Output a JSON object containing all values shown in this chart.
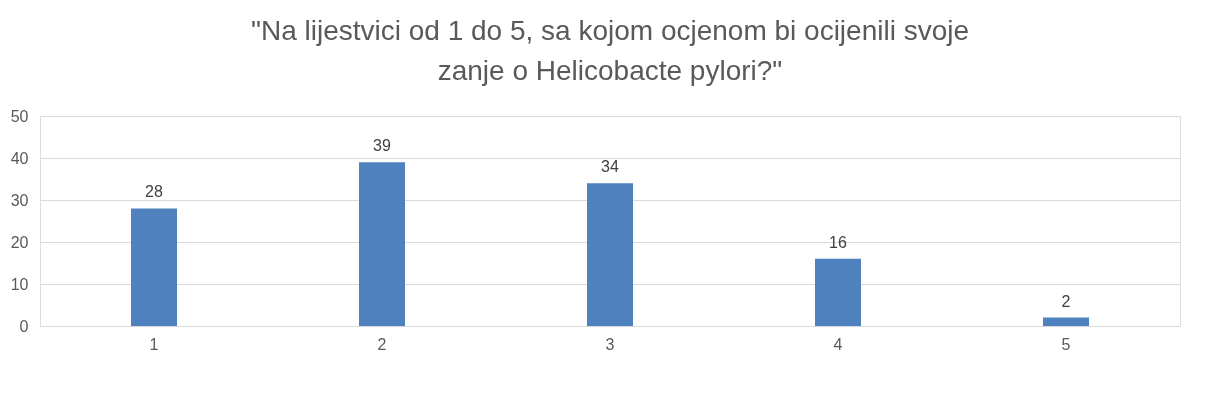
{
  "chart_data": {
    "type": "bar",
    "title": "\"Na lijestvici od 1 do 5, sa kojom ocjenom bi ocijenili svoje zanje o Helicobacte pylori?\"",
    "categories": [
      "1",
      "2",
      "3",
      "4",
      "5"
    ],
    "values": [
      28,
      39,
      34,
      16,
      2
    ],
    "color": "#4e81bd",
    "ylim": [
      0,
      50
    ],
    "yticks": [
      0,
      10,
      20,
      30,
      40,
      50
    ],
    "grid": "y",
    "data_labels": true
  }
}
